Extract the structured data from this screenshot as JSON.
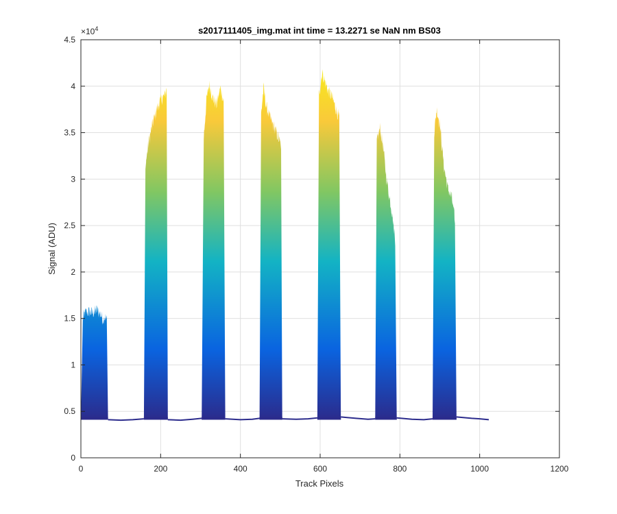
{
  "chart_data": {
    "type": "area",
    "title": "s2017111405_img.mat int time = 13.2271 se  NaN nm BS03",
    "xlabel": "Track Pixels",
    "ylabel": "Signal (ADU)",
    "xlim": [
      0,
      1200
    ],
    "ylim": [
      0,
      45000
    ],
    "xticks": [
      0,
      200,
      400,
      600,
      800,
      1000,
      1200
    ],
    "yticks": [
      0,
      5000,
      10000,
      15000,
      20000,
      25000,
      30000,
      35000,
      40000,
      45000
    ],
    "ytick_labels": [
      "0",
      "0.5",
      "1",
      "1.5",
      "2",
      "2.5",
      "3",
      "3.5",
      "4",
      "4.5"
    ],
    "y_exponent_label": "×10",
    "y_exponent_power": "4",
    "grid": true,
    "baseline": 4100,
    "colors": {
      "low": "#2b2b8c",
      "midlow": "#0a64e0",
      "mid": "#13b3c4",
      "midhigh": "#82c762",
      "high": "#f9c93a",
      "top": "#f7ea1c"
    },
    "series": [
      {
        "x": [
          0,
          5,
          10,
          20,
          30,
          40,
          50,
          55,
          60,
          65,
          68
        ],
        "y": [
          4100,
          15000,
          15600,
          15700,
          15600,
          15900,
          15400,
          14900,
          15200,
          14800,
          4100
        ]
      },
      {
        "x": [
          158,
          162,
          170,
          180,
          190,
          200,
          210,
          215,
          218
        ],
        "y": [
          4100,
          31500,
          34000,
          36000,
          37500,
          38500,
          39000,
          39700,
          4100
        ]
      },
      {
        "x": [
          303,
          308,
          315,
          322,
          330,
          340,
          350,
          358,
          362
        ],
        "y": [
          4100,
          34500,
          38500,
          40200,
          38800,
          38000,
          39800,
          38400,
          4100
        ]
      },
      {
        "x": [
          448,
          452,
          458,
          465,
          475,
          485,
          495,
          502,
          505
        ],
        "y": [
          4100,
          37000,
          39800,
          37800,
          36500,
          35500,
          34500,
          33500,
          4100
        ]
      },
      {
        "x": [
          593,
          597,
          605,
          612,
          620,
          630,
          640,
          648,
          652
        ],
        "y": [
          4100,
          39000,
          41500,
          40500,
          39500,
          38800,
          37500,
          36500,
          4100
        ]
      },
      {
        "x": [
          738,
          742,
          750,
          758,
          765,
          772,
          780,
          788,
          792
        ],
        "y": [
          4100,
          34000,
          35500,
          33500,
          30500,
          28500,
          26500,
          23500,
          4100
        ]
      },
      {
        "x": [
          882,
          886,
          892,
          900,
          910,
          920,
          930,
          938,
          942
        ],
        "y": [
          4100,
          35000,
          37500,
          36000,
          31500,
          29000,
          28000,
          25500,
          4100
        ]
      }
    ],
    "valleys": [
      {
        "x": [
          68,
          100,
          130,
          158
        ],
        "y": [
          4100,
          4050,
          4100,
          4200
        ]
      },
      {
        "x": [
          218,
          250,
          280,
          303
        ],
        "y": [
          4100,
          4050,
          4150,
          4250
        ]
      },
      {
        "x": [
          362,
          400,
          430,
          448
        ],
        "y": [
          4200,
          4100,
          4150,
          4250
        ]
      },
      {
        "x": [
          505,
          540,
          570,
          593
        ],
        "y": [
          4200,
          4150,
          4200,
          4300
        ]
      },
      {
        "x": [
          652,
          690,
          720,
          738
        ],
        "y": [
          4400,
          4250,
          4150,
          4200
        ]
      },
      {
        "x": [
          792,
          830,
          860,
          882
        ],
        "y": [
          4300,
          4150,
          4100,
          4200
        ]
      },
      {
        "x": [
          942,
          980,
          1000,
          1023
        ],
        "y": [
          4400,
          4250,
          4200,
          4100
        ]
      }
    ]
  }
}
